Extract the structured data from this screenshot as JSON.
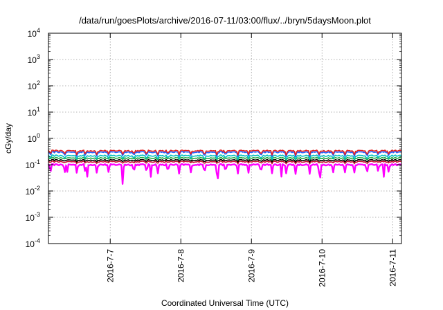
{
  "chart_data": {
    "type": "line",
    "title": "/data/run/goesPlots/archive/2016-07-11/03:00/flux/../bryn/5daysMoon.plot",
    "xlabel": "Coordinated Universal Time (UTC)",
    "ylabel": "cGy/day",
    "yscale": "log",
    "ylim": [
      0.0001,
      10000
    ],
    "y_ticks": [
      {
        "value": 0.0001,
        "base": "10",
        "exp": "-4"
      },
      {
        "value": 0.001,
        "base": "10",
        "exp": "-3"
      },
      {
        "value": 0.01,
        "base": "10",
        "exp": "-2"
      },
      {
        "value": 0.1,
        "base": "10",
        "exp": "-1"
      },
      {
        "value": 1,
        "base": "10",
        "exp": "0"
      },
      {
        "value": 10,
        "base": "10",
        "exp": "1"
      },
      {
        "value": 100,
        "base": "10",
        "exp": "2"
      },
      {
        "value": 1000,
        "base": "10",
        "exp": "3"
      },
      {
        "value": 10000,
        "base": "10",
        "exp": "4"
      }
    ],
    "xlim": [
      "2016-07-06 03:00",
      "2016-07-11 03:00"
    ],
    "x_ticks": [
      "2016-7-7",
      "2016-7-8",
      "2016-7-9",
      "2016-7-10",
      "2016-7-11"
    ],
    "grid": true,
    "legend": "none",
    "series": [
      {
        "color": "#ff00ff",
        "level": 0.1,
        "dip_depth": 0.55,
        "dip_days": [
          0.27,
          0.55,
          1.05,
          1.45,
          2.4,
          3.3,
          3.85,
          4.75
        ]
      },
      {
        "color": "#c8102e",
        "level": 0.13,
        "dip_depth": 0.12
      },
      {
        "color": "#000000",
        "level": 0.15,
        "dip_depth": 0.12
      },
      {
        "color": "#22aa44",
        "level": 0.18,
        "dip_depth": 0.12
      },
      {
        "color": "#00c0c0",
        "level": 0.22,
        "dip_depth": 0.25
      },
      {
        "color": "#1f5fff",
        "level": 0.3,
        "dip_depth": 0.3
      },
      {
        "color": "#e52222",
        "level": 0.34,
        "dip_depth": 0.3
      }
    ]
  }
}
